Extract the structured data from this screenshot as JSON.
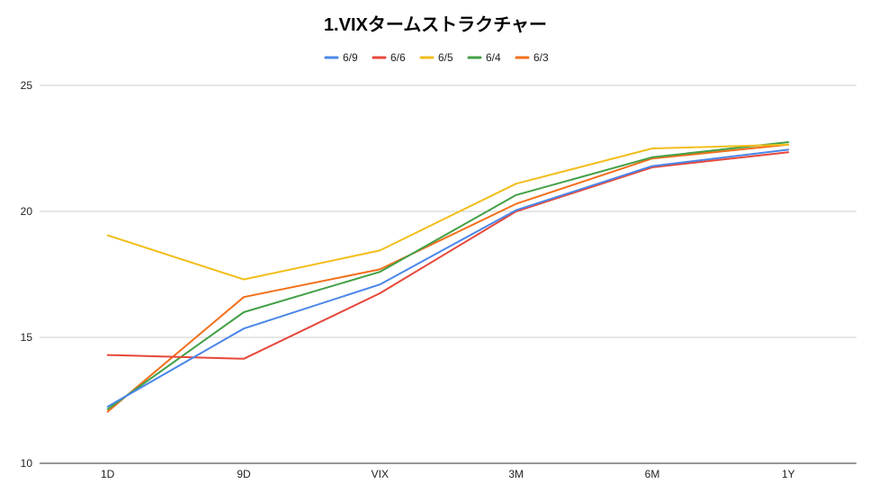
{
  "chart_data": {
    "type": "line",
    "title": "1.VIXタームストラクチャー",
    "categories": [
      "1D",
      "9D",
      "VIX",
      "3M",
      "6M",
      "1Y"
    ],
    "ylim": [
      10,
      25
    ],
    "yticks": [
      10,
      15,
      20,
      25
    ],
    "grid": true,
    "legend_position": "top",
    "series": [
      {
        "name": "6/9",
        "color": "#4a86e8",
        "values": [
          12.25,
          15.35,
          17.1,
          20.05,
          21.8,
          22.45
        ]
      },
      {
        "name": "6/6",
        "color": "#e6473a",
        "values": [
          14.3,
          14.15,
          16.75,
          20.0,
          21.75,
          22.35
        ]
      },
      {
        "name": "6/5",
        "color": "#f2be1c",
        "values": [
          19.05,
          17.3,
          18.45,
          21.1,
          22.5,
          22.65
        ]
      },
      {
        "name": "6/4",
        "color": "#43a047",
        "values": [
          12.15,
          16.0,
          17.6,
          20.65,
          22.15,
          22.75
        ]
      },
      {
        "name": "6/3",
        "color": "#f26f1a",
        "values": [
          12.05,
          16.6,
          17.7,
          20.3,
          22.1,
          22.65
        ]
      }
    ]
  }
}
